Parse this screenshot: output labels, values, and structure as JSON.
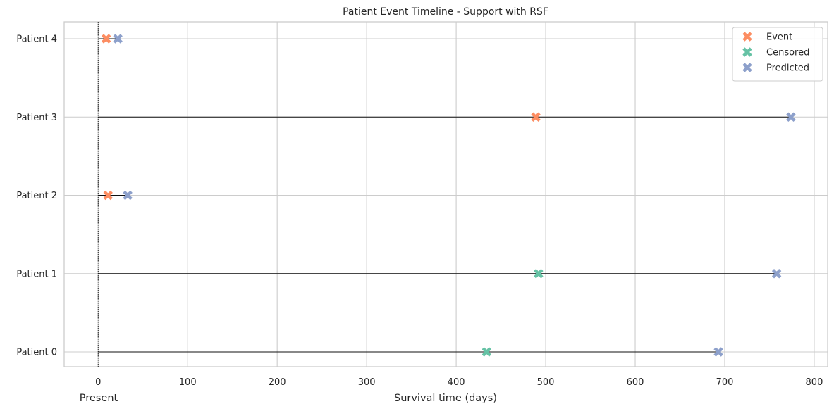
{
  "chart_data": {
    "type": "scatter",
    "title": "Patient Event Timeline - Support with RSF",
    "xlabel": "Survival time (days)",
    "present_label": "Present",
    "xlim": [
      -38,
      815
    ],
    "xticks": [
      0,
      100,
      200,
      300,
      400,
      500,
      600,
      700,
      800
    ],
    "patients": [
      {
        "label": "Patient 0",
        "observed": 434,
        "status": "Censored",
        "predicted": 693
      },
      {
        "label": "Patient 1",
        "observed": 492,
        "status": "Censored",
        "predicted": 758
      },
      {
        "label": "Patient 2",
        "observed": 11,
        "status": "Event",
        "predicted": 33
      },
      {
        "label": "Patient 3",
        "observed": 489,
        "status": "Event",
        "predicted": 774
      },
      {
        "label": "Patient 4",
        "observed": 9,
        "status": "Event",
        "predicted": 22
      }
    ],
    "legend": {
      "position": "top-right",
      "entries": [
        {
          "name": "Event",
          "color": "#fc8d62"
        },
        {
          "name": "Censored",
          "color": "#66c2a5"
        },
        {
          "name": "Predicted",
          "color": "#8da0cb"
        }
      ]
    },
    "grid": true
  }
}
